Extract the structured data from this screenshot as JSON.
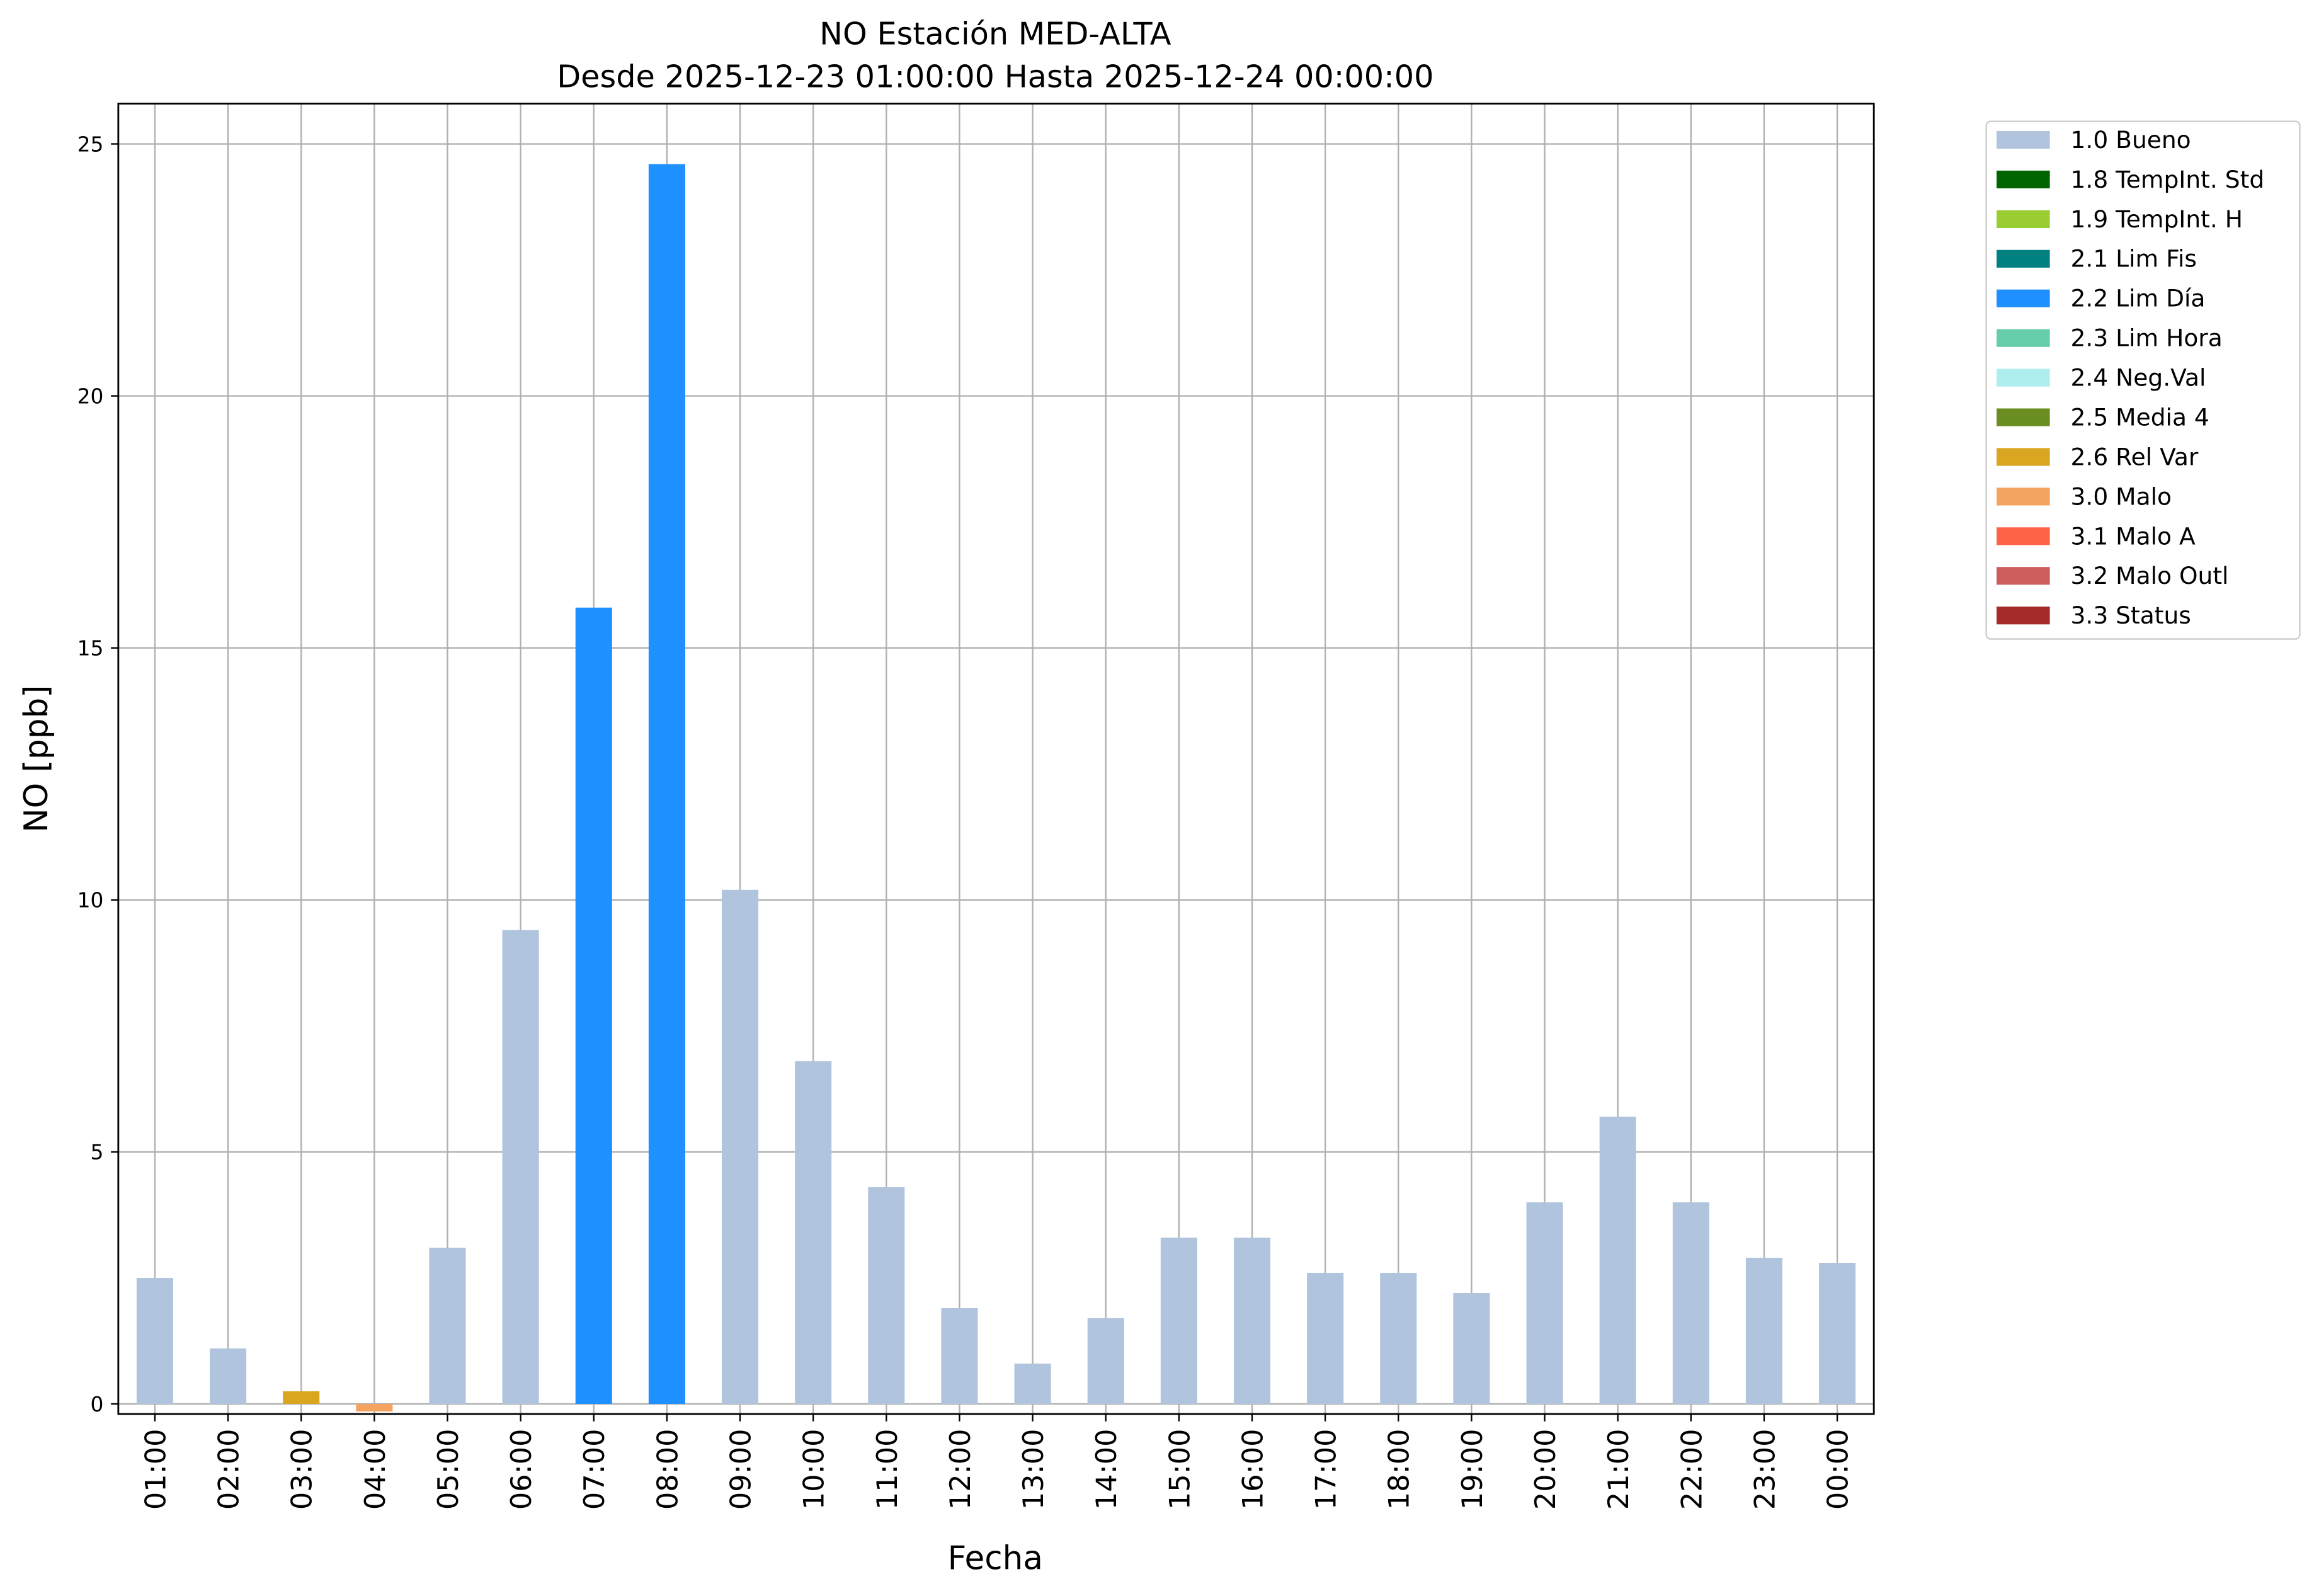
{
  "chart_data": {
    "type": "bar",
    "title": "NO Estación MED-ALTA",
    "subtitle": "Desde 2025-12-23 01:00:00 Hasta 2025-12-24 00:00:00",
    "x_label": "Fecha",
    "y_label": "NO [ppb]",
    "categories": [
      "01:00",
      "02:00",
      "03:00",
      "04:00",
      "05:00",
      "06:00",
      "07:00",
      "08:00",
      "09:00",
      "10:00",
      "11:00",
      "12:00",
      "13:00",
      "14:00",
      "15:00",
      "16:00",
      "17:00",
      "18:00",
      "19:00",
      "20:00",
      "21:00",
      "22:00",
      "23:00",
      "00:00"
    ],
    "series": [
      {
        "name": "1.0 Bueno",
        "color": "#b0c4de",
        "values": [
          2.5,
          1.1,
          null,
          null,
          3.1,
          9.4,
          null,
          null,
          10.2,
          6.8,
          4.3,
          1.9,
          0.8,
          1.7,
          3.3,
          3.3,
          2.6,
          2.6,
          2.2,
          4.0,
          5.7,
          4.0,
          2.9,
          2.8
        ]
      },
      {
        "name": "1.8 TempInt. Std",
        "color": "#006400",
        "values": [
          null,
          null,
          null,
          null,
          null,
          null,
          null,
          null,
          null,
          null,
          null,
          null,
          null,
          null,
          null,
          null,
          null,
          null,
          null,
          null,
          null,
          null,
          null,
          null
        ]
      },
      {
        "name": "1.9 TempInt. H",
        "color": "#9acd32",
        "values": [
          null,
          null,
          null,
          null,
          null,
          null,
          null,
          null,
          null,
          null,
          null,
          null,
          null,
          null,
          null,
          null,
          null,
          null,
          null,
          null,
          null,
          null,
          null,
          null
        ]
      },
      {
        "name": "2.1 Lim Fis",
        "color": "#008080",
        "values": [
          null,
          null,
          null,
          null,
          null,
          null,
          null,
          null,
          null,
          null,
          null,
          null,
          null,
          null,
          null,
          null,
          null,
          null,
          null,
          null,
          null,
          null,
          null,
          null
        ]
      },
      {
        "name": "2.2 Lim Día",
        "color": "#1e90ff",
        "values": [
          null,
          null,
          null,
          null,
          null,
          null,
          15.8,
          24.6,
          null,
          null,
          null,
          null,
          null,
          null,
          null,
          null,
          null,
          null,
          null,
          null,
          null,
          null,
          null,
          null
        ]
      },
      {
        "name": "2.3 Lim Hora",
        "color": "#66cdaa",
        "values": [
          null,
          null,
          null,
          null,
          null,
          null,
          null,
          null,
          null,
          null,
          null,
          null,
          null,
          null,
          null,
          null,
          null,
          null,
          null,
          null,
          null,
          null,
          null,
          null
        ]
      },
      {
        "name": "2.4 Neg.Val",
        "color": "#afeeee",
        "values": [
          null,
          null,
          null,
          null,
          null,
          null,
          null,
          null,
          null,
          null,
          null,
          null,
          null,
          null,
          null,
          null,
          null,
          null,
          null,
          null,
          null,
          null,
          null,
          null
        ]
      },
      {
        "name": "2.5 Media 4",
        "color": "#6b8e23",
        "values": [
          null,
          null,
          null,
          null,
          null,
          null,
          null,
          null,
          null,
          null,
          null,
          null,
          null,
          null,
          null,
          null,
          null,
          null,
          null,
          null,
          null,
          null,
          null,
          null
        ]
      },
      {
        "name": "2.6 Rel Var",
        "color": "#daa520",
        "values": [
          null,
          null,
          0.25,
          null,
          null,
          null,
          null,
          null,
          null,
          null,
          null,
          null,
          null,
          null,
          null,
          null,
          null,
          null,
          null,
          null,
          null,
          null,
          null,
          null
        ]
      },
      {
        "name": "3.0 Malo",
        "color": "#f4a460",
        "values": [
          null,
          null,
          null,
          -0.15,
          null,
          null,
          null,
          null,
          null,
          null,
          null,
          null,
          null,
          null,
          null,
          null,
          null,
          null,
          null,
          null,
          null,
          null,
          null,
          null
        ]
      },
      {
        "name": "3.1 Malo A",
        "color": "#ff6347",
        "values": [
          null,
          null,
          null,
          null,
          null,
          null,
          null,
          null,
          null,
          null,
          null,
          null,
          null,
          null,
          null,
          null,
          null,
          null,
          null,
          null,
          null,
          null,
          null,
          null
        ]
      },
      {
        "name": "3.2 Malo Outl",
        "color": "#cd5c5c",
        "values": [
          null,
          null,
          null,
          null,
          null,
          null,
          null,
          null,
          null,
          null,
          null,
          null,
          null,
          null,
          null,
          null,
          null,
          null,
          null,
          null,
          null,
          null,
          null,
          null
        ]
      },
      {
        "name": "3.3 Status",
        "color": "#a52a2a",
        "values": [
          null,
          null,
          null,
          null,
          null,
          null,
          null,
          null,
          null,
          null,
          null,
          null,
          null,
          null,
          null,
          null,
          null,
          null,
          null,
          null,
          null,
          null,
          null,
          null
        ]
      }
    ],
    "ylim": [
      -0.2,
      25.8
    ],
    "yticks": [
      0,
      5,
      10,
      15,
      20,
      25
    ],
    "grid": true
  }
}
